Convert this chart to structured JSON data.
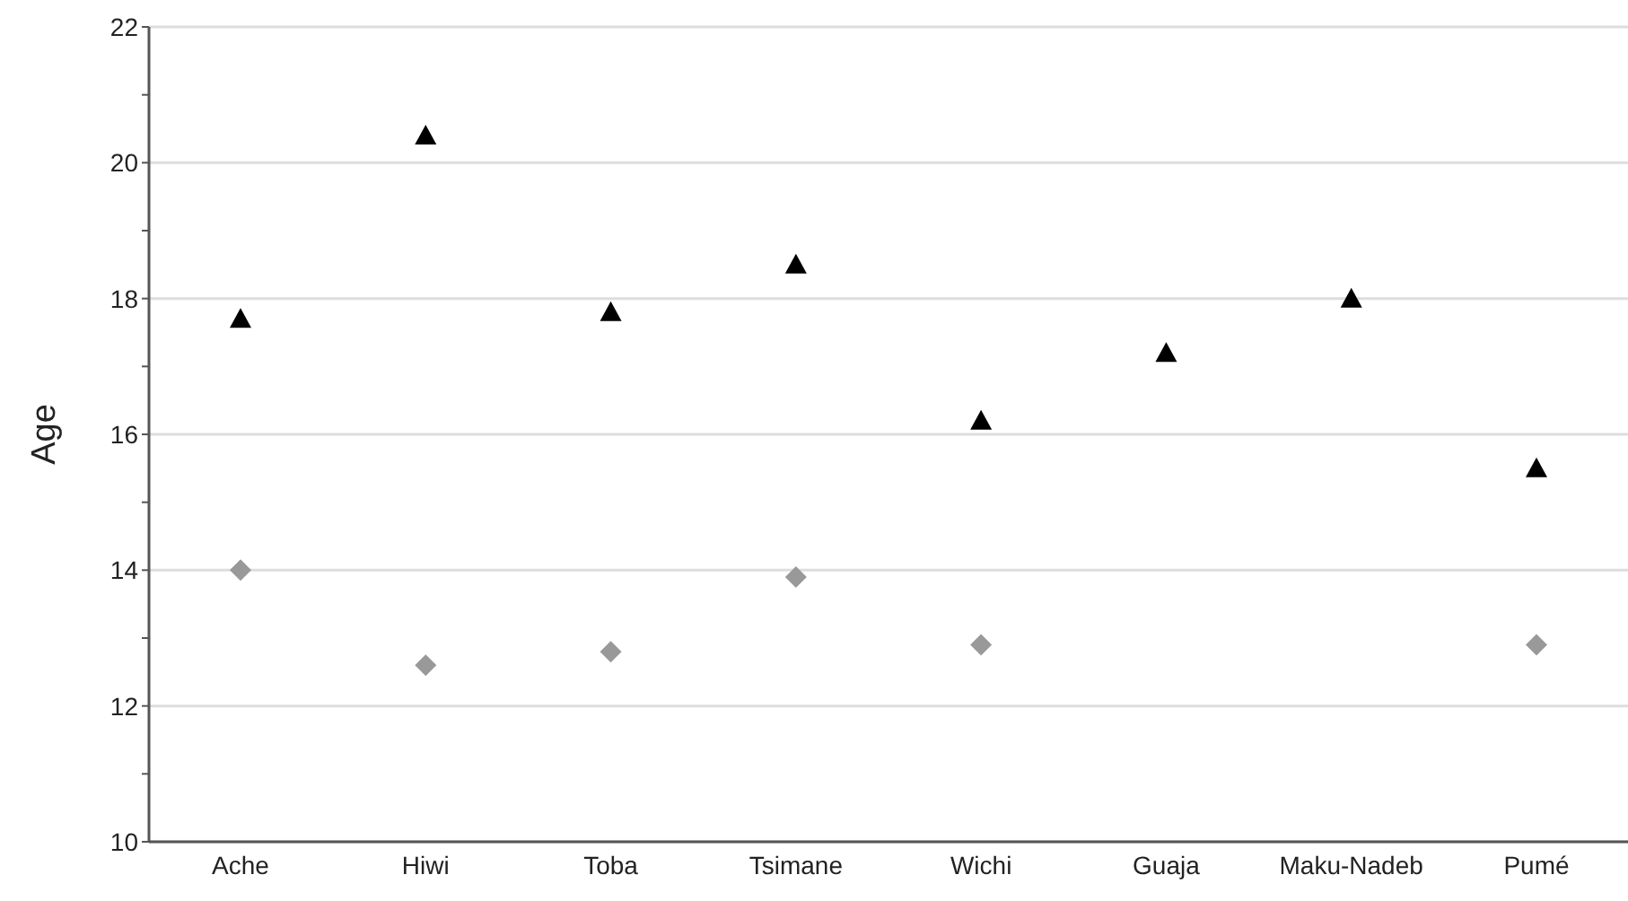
{
  "chart_data": {
    "type": "scatter",
    "ylabel": "Age",
    "categories": [
      "Ache",
      "Hiwi",
      "Toba",
      "Tsimane",
      "Wichi",
      "Guaja",
      "Maku-Nadeb",
      "Pumé"
    ],
    "series": [
      {
        "color": "#000000",
        "marker": "triangle",
        "values": [
          17.7,
          20.4,
          17.8,
          18.5,
          16.2,
          17.2,
          18.0,
          15.5
        ]
      },
      {
        "color": "#999999",
        "marker": "diamond",
        "values": [
          14.0,
          12.6,
          12.8,
          13.9,
          12.9,
          null,
          null,
          12.9
        ]
      }
    ],
    "ylim": [
      10,
      22
    ],
    "yticks": [
      10,
      {
        "value": 11,
        "label": null
      },
      12,
      {
        "value": 13,
        "label": null
      },
      14,
      {
        "value": 15,
        "label": null
      },
      16,
      {
        "value": 17,
        "label": null
      },
      18,
      {
        "value": 19,
        "label": null
      },
      20,
      {
        "value": 21,
        "label": null
      },
      22
    ],
    "grid": "y",
    "legend": false
  }
}
